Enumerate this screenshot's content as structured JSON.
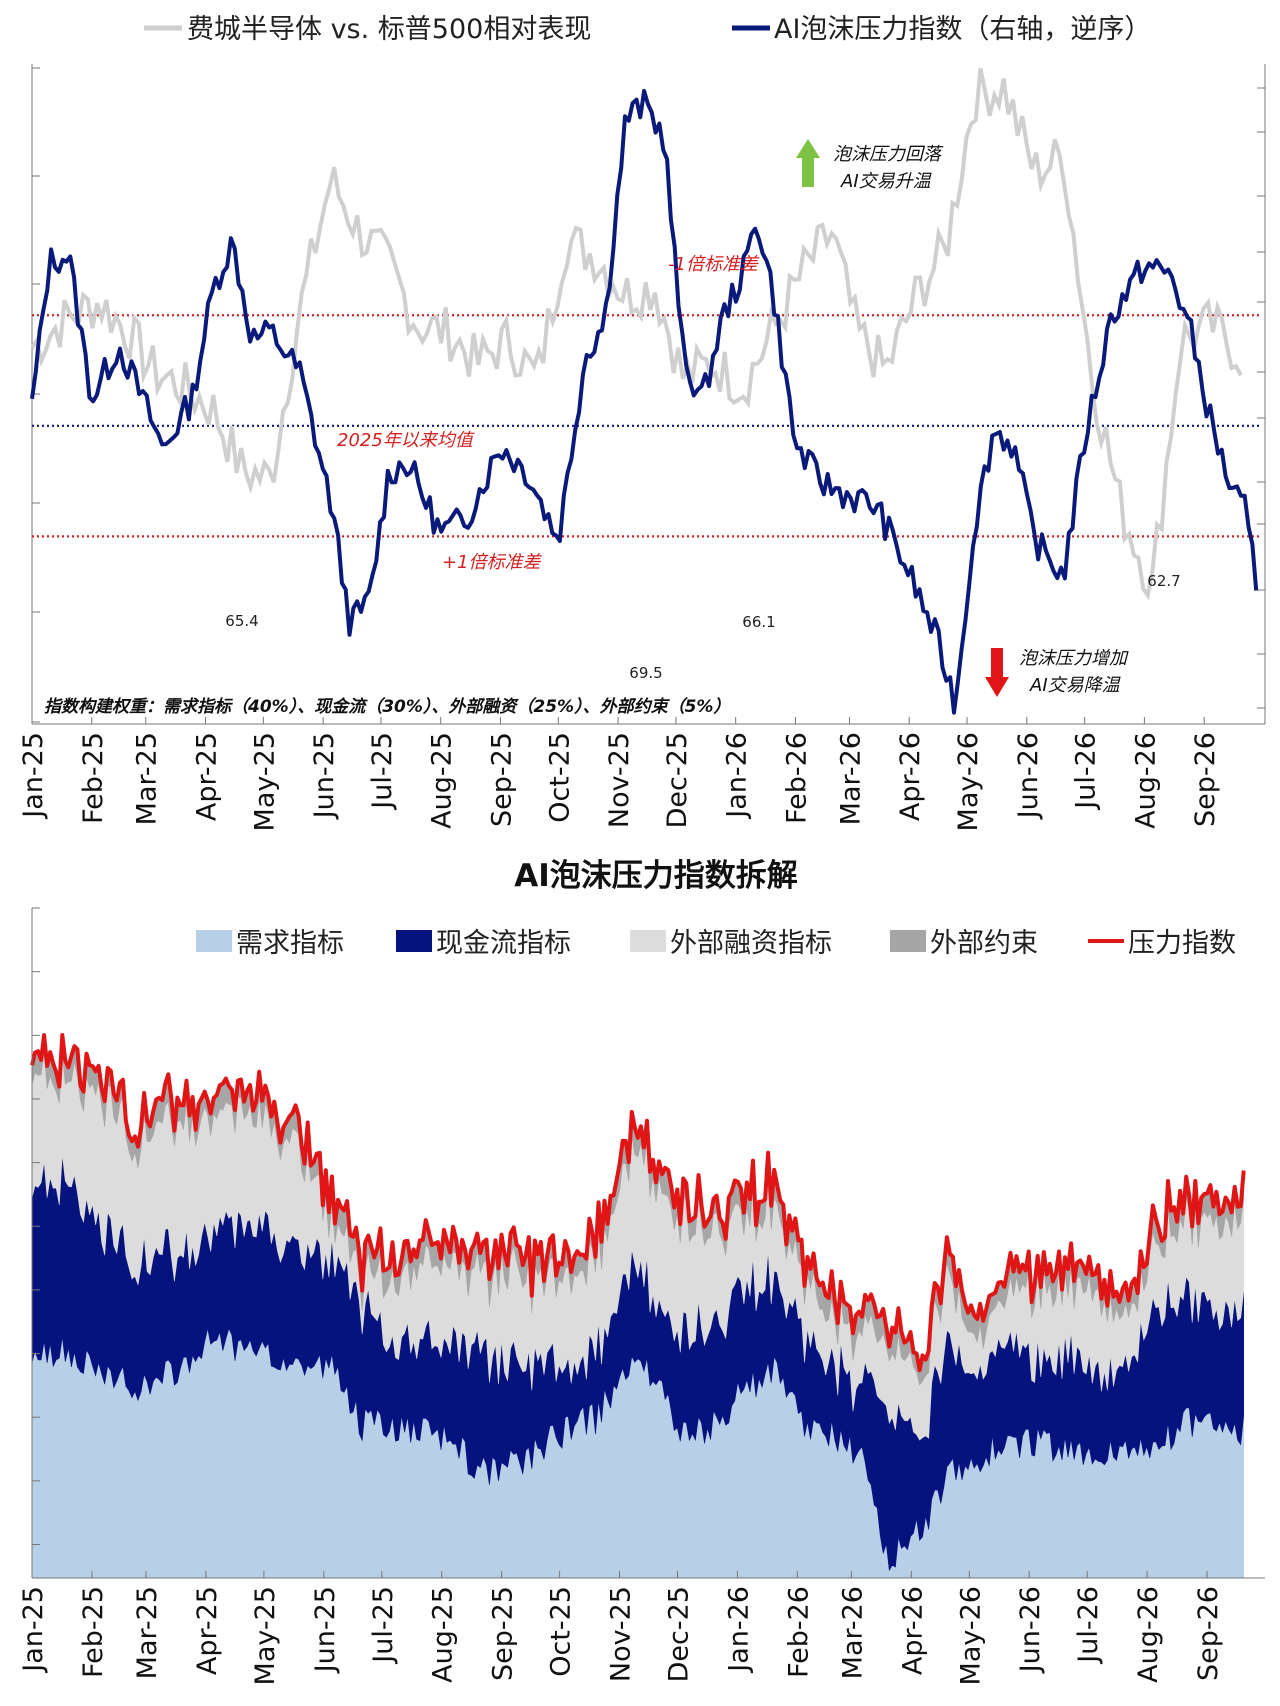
{
  "months": [
    "Jan-25",
    "Feb-25",
    "Mar-25",
    "Apr-25",
    "May-25",
    "Jun-25",
    "Jul-25",
    "Aug-25",
    "Sep-25",
    "Oct-25",
    "Nov-25",
    "Dec-25",
    "Jan-26",
    "Feb-26",
    "Mar-26",
    "Apr-26",
    "May-26",
    "Jun-26",
    "Jul-26",
    "Aug-26",
    "Sep-26"
  ],
  "colors": {
    "semi": "#cfcfcf",
    "index": "#0a1a7a",
    "red_dotted": "#d42020",
    "blue_dotted": "#0a1a7a",
    "demand": "#b8cfe8",
    "cashflow": "#06137e",
    "financing": "#dcdcdc",
    "constraint": "#a6a6a6",
    "pressure": "#e01515",
    "arrow_up": "#7dc242",
    "arrow_down": "#e01515"
  },
  "chart_data": [
    {
      "type": "line",
      "legend_position": "top",
      "series": [
        {
          "name": "费城半导体 vs. 标普500相对表现",
          "axis": "left",
          "x": [
            "2025-01-01",
            "2025-01-20",
            "2025-02-05",
            "2025-02-20",
            "2025-03-05",
            "2025-03-20",
            "2025-04-05",
            "2025-04-20",
            "2025-05-05",
            "2025-05-20",
            "2025-06-05",
            "2025-06-20",
            "2025-07-05",
            "2025-07-20",
            "2025-08-05",
            "2025-08-20",
            "2025-09-05",
            "2025-09-20",
            "2025-10-05",
            "2025-10-20",
            "2025-11-05",
            "2025-11-20",
            "2025-12-05",
            "2025-12-20",
            "2026-01-05",
            "2026-01-20",
            "2026-02-05",
            "2026-02-20",
            "2026-03-05",
            "2026-03-20",
            "2026-04-05",
            "2026-04-20",
            "2026-05-05",
            "2026-05-20",
            "2026-06-05",
            "2026-06-20",
            "2026-07-05",
            "2026-07-20",
            "2026-08-05",
            "2026-08-20",
            "2026-09-05",
            "2026-09-20"
          ],
          "values": [
            0.45,
            0.65,
            0.75,
            0.55,
            0.3,
            0.2,
            0.05,
            -0.35,
            -0.4,
            0.7,
            1.55,
            1.2,
            1.0,
            0.6,
            0.55,
            0.35,
            0.5,
            0.25,
            1.15,
            1.05,
            0.8,
            0.85,
            0.25,
            0.35,
            0.2,
            0.55,
            0.95,
            1.2,
            0.55,
            0.3,
            0.8,
            1.1,
            2.1,
            2.15,
            1.6,
            1.7,
            0.25,
            -0.6,
            -1.1,
            0.5,
            0.6,
            0.4
          ]
        },
        {
          "name": "AI泡沫压力指数（右轴，逆序）",
          "axis": "right",
          "x": [
            "2025-01-01",
            "2025-01-10",
            "2025-01-20",
            "2025-02-01",
            "2025-02-15",
            "2025-03-01",
            "2025-03-10",
            "2025-03-25",
            "2025-04-05",
            "2025-04-15",
            "2025-04-25",
            "2025-05-05",
            "2025-05-20",
            "2025-06-05",
            "2025-06-15",
            "2025-06-25",
            "2025-07-05",
            "2025-07-15",
            "2025-08-01",
            "2025-08-15",
            "2025-09-01",
            "2025-09-15",
            "2025-10-01",
            "2025-10-15",
            "2025-10-25",
            "2025-11-05",
            "2025-11-15",
            "2025-11-25",
            "2025-12-05",
            "2025-12-15",
            "2025-12-25",
            "2026-01-05",
            "2026-01-12",
            "2026-01-20",
            "2026-02-01",
            "2026-02-15",
            "2026-03-01",
            "2026-03-15",
            "2026-04-01",
            "2026-04-15",
            "2026-04-25",
            "2026-05-05",
            "2026-05-15",
            "2026-05-25",
            "2026-06-05",
            "2026-06-20",
            "2026-07-01",
            "2026-07-15",
            "2026-08-01",
            "2026-08-15",
            "2026-08-25",
            "2026-09-05",
            "2026-09-15",
            "2026-09-22",
            "2026-09-28"
          ],
          "values": [
            60.5,
            64.8,
            65.0,
            60.7,
            62.3,
            60.5,
            59.2,
            60.7,
            64.0,
            65.4,
            62.5,
            62.7,
            61.5,
            57.6,
            54.0,
            54.7,
            58.5,
            58.8,
            56.7,
            57.2,
            59.3,
            58.5,
            56.5,
            62.0,
            63.0,
            69.1,
            69.5,
            68.5,
            61.8,
            60.7,
            63.1,
            64.5,
            66.1,
            64.0,
            59.3,
            58.2,
            57.8,
            57.5,
            55.5,
            53.6,
            51.6,
            57.0,
            59.8,
            59.3,
            56.5,
            55.4,
            59.5,
            63.2,
            64.7,
            64.4,
            62.7,
            59.9,
            58.0,
            57.4,
            55.3
          ]
        }
      ],
      "annotations": [
        "泡沫压力回落",
        "AI交易升温",
        "泡沫压力增加",
        "AI交易降温",
        "-1倍标准差",
        "2025年以来均值",
        "+1倍标准差",
        "65.4",
        "69.5",
        "66.1",
        "62.7"
      ],
      "footnote": "指数构建权重：需求指标（40%）、现金流（30%）、外部融资（25%）、外部约束（5%）",
      "reference_lines_right": {
        "minus_1_std": 56.6,
        "mean": 59.9,
        "plus_1_std": 63.2
      },
      "right_axis_range": [
        51.0,
        70.7
      ],
      "left_axis_range": [
        -2.0,
        2.3
      ]
    },
    {
      "type": "area",
      "title": "AI泡沫压力指数拆解",
      "legend_position": "top",
      "stacked": true,
      "x": [
        "2025-01-01",
        "2025-01-20",
        "2025-02-05",
        "2025-02-20",
        "2025-03-05",
        "2025-03-20",
        "2025-04-05",
        "2025-04-20",
        "2025-05-05",
        "2025-05-20",
        "2025-06-05",
        "2025-06-20",
        "2025-07-05",
        "2025-07-20",
        "2025-08-05",
        "2025-08-20",
        "2025-09-05",
        "2025-09-20",
        "2025-10-05",
        "2025-10-20",
        "2025-11-05",
        "2025-11-20",
        "2025-12-05",
        "2025-12-20",
        "2026-01-05",
        "2026-01-20",
        "2026-02-05",
        "2026-02-20",
        "2026-03-05",
        "2026-03-20",
        "2026-04-05",
        "2026-04-20",
        "2026-05-05",
        "2026-05-20",
        "2026-06-05",
        "2026-06-20",
        "2026-07-05",
        "2026-07-20",
        "2026-08-05",
        "2026-08-20",
        "2026-09-05",
        "2026-09-20"
      ],
      "series": [
        {
          "name": "需求指标",
          "values": [
            33,
            34,
            30,
            29,
            29,
            32,
            36,
            34,
            33,
            32,
            32,
            23,
            23,
            22,
            21,
            16,
            17,
            19,
            22,
            24,
            31,
            30,
            21,
            23,
            28,
            31,
            23,
            21,
            19,
            3,
            7,
            15,
            18,
            20,
            20,
            19,
            17,
            19,
            19,
            23,
            24,
            22
          ]
        },
        {
          "name": "现金流指标",
          "values": [
            26,
            25,
            21,
            20,
            18,
            17,
            16,
            19,
            18,
            17,
            16,
            18,
            11,
            14,
            15,
            19,
            15,
            13,
            9,
            10,
            14,
            12,
            16,
            15,
            15,
            14,
            13,
            11,
            10,
            23,
            13,
            19,
            14,
            15,
            11,
            14,
            13,
            12,
            20,
            18,
            16,
            17
          ]
        },
        {
          "name": "外部融资指标",
          "values": [
            16,
            15,
            20,
            18,
            19,
            20,
            17,
            17,
            16,
            15,
            6,
            4,
            9,
            11,
            12,
            11,
            14,
            12,
            14,
            13,
            17,
            18,
            17,
            14,
            11,
            10,
            8,
            7,
            7,
            10,
            9,
            10,
            5,
            7,
            11,
            10,
            12,
            7,
            9,
            11,
            13,
            14
          ]
        },
        {
          "name": "外部约束",
          "values": [
            3,
            3,
            3,
            3,
            3,
            3,
            3,
            3,
            3,
            3,
            3,
            3,
            3,
            3,
            3,
            3,
            3,
            3,
            3,
            3,
            3,
            3,
            3,
            3,
            3,
            3,
            3,
            3,
            3,
            3,
            3,
            3,
            3,
            3,
            3,
            3,
            3,
            3,
            3,
            3,
            3,
            3
          ]
        }
      ],
      "line_series": {
        "name": "压力指数",
        "values": [
          78,
          77,
          74,
          70,
          69,
          72,
          72,
          73,
          70,
          67,
          57,
          48,
          46,
          50,
          51,
          49,
          49,
          47,
          48,
          50,
          65,
          63,
          57,
          55,
          57,
          58,
          47,
          42,
          39,
          39,
          32,
          47,
          40,
          45,
          45,
          46,
          45,
          41,
          51,
          55,
          56,
          56
        ]
      },
      "y_range": [
        0,
        100
      ]
    }
  ]
}
